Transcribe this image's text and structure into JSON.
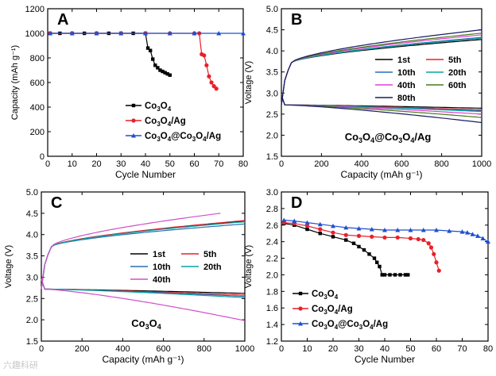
{
  "watermark": "六趣科研",
  "chart_data": [
    {
      "id": "A",
      "type": "line",
      "panel_label": "A",
      "xlabel": "Cycle Number",
      "ylabel": "Capacity (mAh g⁻¹)",
      "xlim": [
        0,
        80
      ],
      "ylim": [
        0,
        1200
      ],
      "xticks": [
        0,
        10,
        20,
        30,
        40,
        50,
        60,
        70,
        80
      ],
      "yticks": [
        0,
        200,
        400,
        600,
        800,
        1000,
        1200
      ],
      "legend_position": "bottom-left",
      "series": [
        {
          "name": "Co3O4",
          "legend": {
            "pre": "Co",
            "sub1": "3",
            "mid": "O",
            "sub2": "4",
            "post": ""
          },
          "color": "#000000",
          "marker": "square",
          "x": [
            1,
            5,
            10,
            15,
            20,
            25,
            30,
            35,
            40,
            41,
            42,
            43,
            44,
            45,
            46,
            47,
            48,
            49,
            50
          ],
          "y": [
            1000,
            1000,
            1000,
            1000,
            1000,
            1000,
            1000,
            1000,
            1000,
            880,
            860,
            790,
            740,
            720,
            700,
            690,
            680,
            670,
            660
          ]
        },
        {
          "name": "Co3O4/Ag",
          "legend": {
            "pre": "Co",
            "sub1": "3",
            "mid": "O",
            "sub2": "4",
            "post": "/Ag"
          },
          "color": "#e8202a",
          "marker": "circle",
          "x": [
            1,
            10,
            20,
            30,
            40,
            50,
            60,
            62,
            63,
            64,
            65,
            66,
            67,
            68,
            69
          ],
          "y": [
            1000,
            1000,
            1000,
            1000,
            1000,
            1000,
            1000,
            1000,
            830,
            820,
            740,
            650,
            600,
            570,
            550
          ]
        },
        {
          "name": "Co3O4@Co3O4/Ag",
          "legend": {
            "pre": "Co",
            "sub1": "3",
            "mid": "O",
            "sub2": "4",
            "post": "@Co",
            "sub3": "3",
            "mid2": "O",
            "sub4": "4",
            "post2": "/Ag"
          },
          "color": "#1f4fd0",
          "marker": "triangle",
          "x": [
            1,
            10,
            20,
            30,
            40,
            50,
            60,
            70,
            80
          ],
          "y": [
            1000,
            1000,
            1000,
            1000,
            1000,
            1000,
            1000,
            1000,
            1000
          ]
        }
      ]
    },
    {
      "id": "B",
      "type": "line",
      "panel_label": "B",
      "annotation": {
        "pre": "Co",
        "sub1": "3",
        "mid": "O",
        "sub2": "4",
        "post": "@Co",
        "sub3": "3",
        "mid2": "O",
        "sub4": "4",
        "post2": "/Ag"
      },
      "xlabel": "Capacity (mAh g⁻¹)",
      "ylabel": "Voltage (V)",
      "xlim": [
        0,
        1000
      ],
      "ylim": [
        1.5,
        5.0
      ],
      "xticks": [
        0,
        200,
        400,
        600,
        800,
        1000
      ],
      "yticks": [
        1.5,
        2.0,
        2.5,
        3.0,
        3.5,
        4.0,
        4.5,
        5.0
      ],
      "legend_position": "center-right",
      "series": [
        {
          "name": "1st",
          "color": "#000000",
          "charge_end": 4.27,
          "discharge_end": 2.64
        },
        {
          "name": "5th",
          "color": "#e8202a",
          "charge_end": 4.3,
          "discharge_end": 2.6
        },
        {
          "name": "10th",
          "color": "#2a6fb5",
          "charge_end": 4.32,
          "discharge_end": 2.58
        },
        {
          "name": "20th",
          "color": "#0aa3a3",
          "charge_end": 4.3,
          "discharge_end": 2.56
        },
        {
          "name": "40th",
          "color": "#e040d0",
          "charge_end": 4.38,
          "discharge_end": 2.5
        },
        {
          "name": "60th",
          "color": "#4a7a1a",
          "charge_end": 4.42,
          "discharge_end": 2.42
        },
        {
          "name": "80th",
          "color": "#1a1a6a",
          "charge_end": 4.5,
          "discharge_end": 2.3
        }
      ]
    },
    {
      "id": "C",
      "type": "line",
      "panel_label": "C",
      "annotation": {
        "pre": "Co",
        "sub1": "3",
        "mid": "O",
        "sub2": "4",
        "post": ""
      },
      "xlabel": "Capacity (mAh g⁻¹)",
      "ylabel": "Voltage (V)",
      "xlim": [
        0,
        1000
      ],
      "ylim": [
        1.5,
        5.0
      ],
      "xticks": [
        0,
        200,
        400,
        600,
        800,
        1000
      ],
      "yticks": [
        1.5,
        2.0,
        2.5,
        3.0,
        3.5,
        4.0,
        4.5,
        5.0
      ],
      "legend_position": "center-right",
      "series": [
        {
          "name": "1st",
          "color": "#000000",
          "charge_end": 4.32,
          "discharge_end": 2.62
        },
        {
          "name": "5th",
          "color": "#e8202a",
          "charge_end": 4.33,
          "discharge_end": 2.58
        },
        {
          "name": "10th",
          "color": "#2a6fb5",
          "charge_end": 4.25,
          "discharge_end": 2.55
        },
        {
          "name": "20th",
          "color": "#0aa3a3",
          "charge_end": 4.3,
          "discharge_end": 2.52
        },
        {
          "name": "40th",
          "color": "#d050c8",
          "charge_end": 4.5,
          "charge_x_end": 880,
          "discharge_end": 1.98
        }
      ]
    },
    {
      "id": "D",
      "type": "line",
      "panel_label": "D",
      "xlabel": "Cycle Number",
      "ylabel": "Voltage (V)",
      "xlim": [
        0,
        80
      ],
      "ylim": [
        1.2,
        3.0
      ],
      "xticks": [
        0,
        10,
        20,
        30,
        40,
        50,
        60,
        70,
        80
      ],
      "yticks": [
        1.2,
        1.4,
        1.6,
        1.8,
        2.0,
        2.2,
        2.4,
        2.6,
        2.8,
        3.0
      ],
      "legend_position": "bottom-left",
      "series": [
        {
          "name": "Co3O4",
          "legend": {
            "pre": "Co",
            "sub1": "3",
            "mid": "O",
            "sub2": "4",
            "post": ""
          },
          "color": "#000000",
          "marker": "square",
          "x": [
            1,
            5,
            10,
            15,
            20,
            25,
            28,
            30,
            32,
            34,
            36,
            37,
            38,
            39,
            40,
            42,
            44,
            46,
            48,
            49
          ],
          "y": [
            2.62,
            2.6,
            2.55,
            2.5,
            2.46,
            2.42,
            2.38,
            2.34,
            2.3,
            2.25,
            2.2,
            2.15,
            2.1,
            2.0,
            2.0,
            2.0,
            2.0,
            2.0,
            2.0,
            2.0
          ]
        },
        {
          "name": "Co3O4/Ag",
          "legend": {
            "pre": "Co",
            "sub1": "3",
            "mid": "O",
            "sub2": "4",
            "post": "/Ag"
          },
          "color": "#e8202a",
          "marker": "circle",
          "x": [
            1,
            5,
            10,
            15,
            20,
            25,
            30,
            35,
            40,
            45,
            50,
            53,
            55,
            57,
            58,
            59,
            60,
            61
          ],
          "y": [
            2.63,
            2.62,
            2.59,
            2.55,
            2.51,
            2.48,
            2.47,
            2.46,
            2.45,
            2.45,
            2.44,
            2.43,
            2.42,
            2.38,
            2.33,
            2.25,
            2.15,
            2.05
          ]
        },
        {
          "name": "Co3O4@Co3O4/Ag",
          "legend": {
            "pre": "Co",
            "sub1": "3",
            "mid": "O",
            "sub2": "4",
            "post": "@Co",
            "sub3": "3",
            "mid2": "O",
            "sub4": "4",
            "post2": "/Ag"
          },
          "color": "#1f4fd0",
          "marker": "triangle",
          "x": [
            1,
            5,
            10,
            15,
            20,
            25,
            30,
            35,
            40,
            45,
            50,
            55,
            60,
            65,
            70,
            72,
            74,
            76,
            78,
            80
          ],
          "y": [
            2.66,
            2.65,
            2.63,
            2.61,
            2.59,
            2.57,
            2.56,
            2.55,
            2.54,
            2.54,
            2.54,
            2.54,
            2.54,
            2.53,
            2.52,
            2.51,
            2.49,
            2.47,
            2.44,
            2.4
          ]
        }
      ]
    }
  ]
}
